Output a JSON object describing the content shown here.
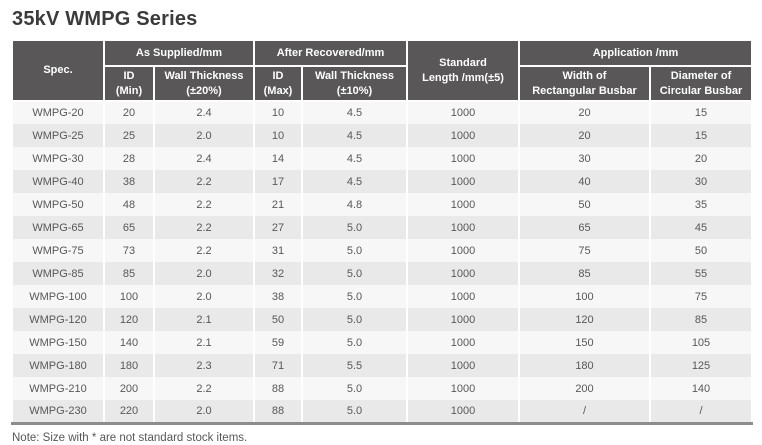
{
  "title": "35kV WMPG Series",
  "note": "Note: Size with * are not standard stock items.",
  "colors": {
    "header_bg": "#595757",
    "header_text": "#ffffff",
    "row_light": "#f7f7f8",
    "row_alt": "#e9e9ea",
    "body_text": "#595757",
    "title_text": "#3b3b3d",
    "table_bottom_border": "#8d8d8d"
  },
  "table": {
    "header": {
      "spec": "Spec.",
      "as_supplied": "As Supplied/mm",
      "after_recovered": "After Recovered/mm",
      "standard_length": "Standard\nLength /mm(±5)",
      "application": "Application /mm",
      "id_min": "ID\n(Min)",
      "wall_20": "Wall Thickness\n(±20%)",
      "id_max": "ID\n(Max)",
      "wall_10": "Wall Thickness\n(±10%)",
      "width_rect": "Width of\nRectangular Busbar",
      "dia_circ": "Diameter of\nCircular Busbar"
    },
    "rows": [
      [
        "WMPG-20",
        "20",
        "2.4",
        "10",
        "4.5",
        "1000",
        "20",
        "15"
      ],
      [
        "WMPG-25",
        "25",
        "2.0",
        "10",
        "4.5",
        "1000",
        "20",
        "15"
      ],
      [
        "WMPG-30",
        "28",
        "2.4",
        "14",
        "4.5",
        "1000",
        "30",
        "20"
      ],
      [
        "WMPG-40",
        "38",
        "2.2",
        "17",
        "4.5",
        "1000",
        "40",
        "30"
      ],
      [
        "WMPG-50",
        "48",
        "2.2",
        "21",
        "4.8",
        "1000",
        "50",
        "35"
      ],
      [
        "WMPG-65",
        "65",
        "2.2",
        "27",
        "5.0",
        "1000",
        "65",
        "45"
      ],
      [
        "WMPG-75",
        "73",
        "2.2",
        "31",
        "5.0",
        "1000",
        "75",
        "50"
      ],
      [
        "WMPG-85",
        "85",
        "2.0",
        "32",
        "5.0",
        "1000",
        "85",
        "55"
      ],
      [
        "WMPG-100",
        "100",
        "2.0",
        "38",
        "5.0",
        "1000",
        "100",
        "75"
      ],
      [
        "WMPG-120",
        "120",
        "2.1",
        "50",
        "5.0",
        "1000",
        "120",
        "85"
      ],
      [
        "WMPG-150",
        "140",
        "2.1",
        "59",
        "5.0",
        "1000",
        "150",
        "105"
      ],
      [
        "WMPG-180",
        "180",
        "2.3",
        "71",
        "5.5",
        "1000",
        "180",
        "125"
      ],
      [
        "WMPG-210",
        "200",
        "2.2",
        "88",
        "5.0",
        "1000",
        "200",
        "140"
      ],
      [
        "WMPG-230",
        "220",
        "2.0",
        "88",
        "5.0",
        "1000",
        "/",
        "/"
      ]
    ]
  }
}
